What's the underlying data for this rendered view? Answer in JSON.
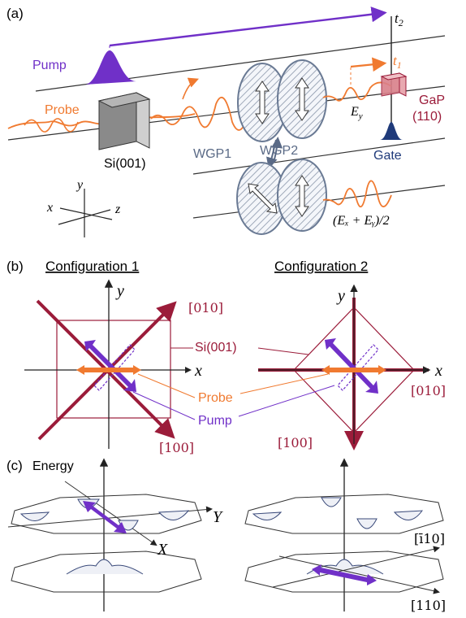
{
  "panel_a": {
    "label": "(a)",
    "t2": "t",
    "t2_sub": "2",
    "t1": "t",
    "t1_sub": "1",
    "pump": "Pump",
    "probe": "Probe",
    "crystal_si": "Si(001)",
    "wgp1": "WGP1",
    "wgp2": "WGP2",
    "gap_line1": "GaP",
    "gap_line2": "(110)",
    "gate": "Gate",
    "ey": "E",
    "ey_sub": "y",
    "sum_label": "(Eₓ + Eᵧ)/2",
    "axis_x": "x",
    "axis_y": "y",
    "axis_z": "z"
  },
  "panel_b": {
    "label": "(b)",
    "config1_title": "Configuration 1",
    "config2_title": "Configuration 2",
    "c1_axis_x": "x",
    "c1_axis_y": "y",
    "c1_dir_010": "[010]",
    "c1_dir_100": "[100]",
    "si_label": "Si(001)",
    "probe_label": "Probe",
    "pump_label": "Pump",
    "c2_axis_x": "x",
    "c2_axis_y": "y",
    "c2_dir_010": "[010]",
    "c2_dir_100": "[100]"
  },
  "panel_c": {
    "label": "(c)",
    "energy": "Energy",
    "axis_X": "X",
    "axis_Y": "Y",
    "dir_1b10": "[ī10]",
    "dir_110": "[110]"
  },
  "colors": {
    "pump": "#7030c8",
    "probe": "#f07a30",
    "dark_red": "#9b1c3a",
    "gate": "#1f3a7a",
    "gap": "#d9808a",
    "wgp_stroke": "#6a7a94"
  }
}
